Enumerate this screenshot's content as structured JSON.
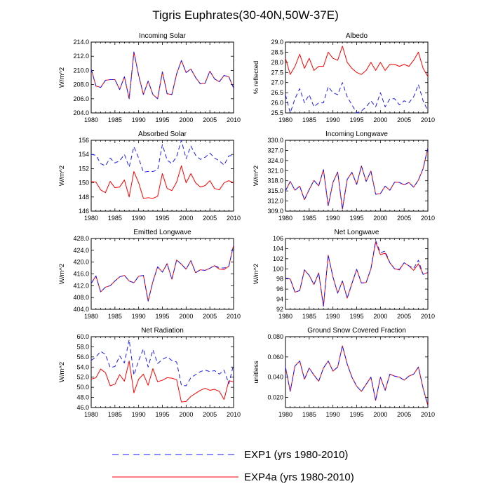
{
  "figure_title": "Tigris Euphrates(30-40N,50W-37E)",
  "legend": [
    {
      "label": "EXP1 (yrs 1980-2010)",
      "color": "#1a1aff",
      "style": "dashed"
    },
    {
      "label": "EXP4a (yrs 1980-2010)",
      "color": "#ff0000",
      "style": "solid"
    }
  ],
  "chart_data": [
    {
      "type": "line",
      "title": "Incoming Solar",
      "ylabel": "W/m^2",
      "xlim": [
        1980,
        2010
      ],
      "ylim": [
        204,
        214
      ],
      "xticks": [
        1980,
        1985,
        1990,
        1995,
        2000,
        2005,
        2010
      ],
      "yticks": [
        204,
        206,
        208,
        210,
        212,
        214
      ],
      "ytick_labels": [
        "204.0",
        "206.0",
        "208.0",
        "210.0",
        "212.0",
        "214.0"
      ],
      "x": [
        1980,
        1981,
        1982,
        1983,
        1984,
        1985,
        1986,
        1987,
        1988,
        1989,
        1990,
        1991,
        1992,
        1993,
        1994,
        1995,
        1996,
        1997,
        1998,
        1999,
        2000,
        2001,
        2002,
        2003,
        2004,
        2005,
        2006,
        2007,
        2008,
        2009,
        2010
      ],
      "series": [
        {
          "name": "EXP1",
          "values": [
            210.2,
            207.8,
            207.6,
            208.6,
            208.7,
            208.7,
            207.3,
            209.1,
            206.0,
            212.6,
            209.3,
            206.6,
            208.5,
            206.6,
            206.0,
            209.8,
            206.7,
            206.6,
            209.5,
            211.4,
            209.7,
            210.2,
            209.0,
            208.1,
            208.2,
            209.9,
            208.8,
            208.4,
            209.3,
            209.1,
            207.5
          ]
        },
        {
          "name": "EXP4a",
          "values": [
            210.2,
            207.8,
            207.6,
            208.6,
            208.7,
            208.7,
            207.3,
            209.1,
            206.0,
            212.6,
            209.3,
            206.6,
            208.5,
            206.6,
            206.0,
            209.8,
            206.7,
            206.6,
            209.5,
            211.4,
            209.7,
            210.2,
            209.0,
            208.1,
            208.2,
            209.9,
            208.8,
            208.4,
            209.3,
            209.1,
            207.5
          ]
        }
      ]
    },
    {
      "type": "line",
      "title": "Albedo",
      "ylabel": "% reflected",
      "xlim": [
        1980,
        2010
      ],
      "ylim": [
        25.5,
        29.0
      ],
      "xticks": [
        1980,
        1985,
        1990,
        1995,
        2000,
        2005,
        2010
      ],
      "yticks": [
        25.5,
        26.0,
        26.5,
        27.0,
        27.5,
        28.0,
        28.5,
        29.0
      ],
      "ytick_labels": [
        "25.5",
        "26.0",
        "26.5",
        "27.0",
        "27.5",
        "28.0",
        "28.5",
        "29.0"
      ],
      "x": [
        1980,
        1981,
        1982,
        1983,
        1984,
        1985,
        1986,
        1987,
        1988,
        1989,
        1990,
        1991,
        1992,
        1993,
        1994,
        1995,
        1996,
        1997,
        1998,
        1999,
        2000,
        2001,
        2002,
        2003,
        2004,
        2005,
        2006,
        2007,
        2008,
        2009,
        2010
      ],
      "series": [
        {
          "name": "EXP1",
          "values": [
            26.4,
            25.5,
            26.2,
            26.7,
            26.0,
            26.4,
            25.8,
            26.0,
            26.0,
            26.8,
            26.5,
            26.4,
            27.0,
            26.3,
            25.9,
            25.5,
            25.6,
            25.8,
            26.1,
            25.8,
            26.5,
            25.8,
            26.2,
            26.2,
            25.9,
            26.1,
            26.0,
            26.3,
            26.9,
            26.1,
            25.6
          ]
        },
        {
          "name": "EXP4a",
          "values": [
            28.2,
            27.4,
            27.8,
            28.4,
            27.7,
            28.2,
            27.6,
            27.8,
            27.8,
            28.5,
            28.2,
            28.1,
            28.8,
            28.0,
            27.7,
            27.5,
            27.4,
            27.6,
            28.0,
            27.6,
            28.0,
            27.6,
            27.9,
            27.9,
            27.8,
            27.9,
            27.8,
            28.1,
            28.5,
            27.7,
            27.3
          ]
        }
      ]
    },
    {
      "type": "line",
      "title": "Absorbed Solar",
      "ylabel": "W/m^2",
      "xlim": [
        1980,
        2010
      ],
      "ylim": [
        146,
        156
      ],
      "xticks": [
        1980,
        1985,
        1990,
        1995,
        2000,
        2005,
        2010
      ],
      "yticks": [
        146,
        148,
        150,
        152,
        154,
        156
      ],
      "ytick_labels": [
        "146",
        "148",
        "150",
        "152",
        "154",
        "156"
      ],
      "x": [
        1980,
        1981,
        1982,
        1983,
        1984,
        1985,
        1986,
        1987,
        1988,
        1989,
        1990,
        1991,
        1992,
        1993,
        1994,
        1995,
        1996,
        1997,
        1998,
        1999,
        2000,
        2001,
        2002,
        2003,
        2004,
        2005,
        2006,
        2007,
        2008,
        2009,
        2010
      ],
      "series": [
        {
          "name": "EXP1",
          "values": [
            154.0,
            153.9,
            152.7,
            152.4,
            153.5,
            152.8,
            153.1,
            154.0,
            152.2,
            155.1,
            153.5,
            151.5,
            151.6,
            151.6,
            151.8,
            155.4,
            153.2,
            152.7,
            153.7,
            156.0,
            153.4,
            155.2,
            153.9,
            153.3,
            153.6,
            154.2,
            153.5,
            153.1,
            152.5,
            153.8,
            153.9
          ]
        },
        {
          "name": "EXP4a",
          "values": [
            150.2,
            150.1,
            149.0,
            148.6,
            150.2,
            149.3,
            149.4,
            150.4,
            148.0,
            151.6,
            150.0,
            147.8,
            147.9,
            147.8,
            148.1,
            151.3,
            149.2,
            148.9,
            150.1,
            152.4,
            150.0,
            151.3,
            150.0,
            149.4,
            149.6,
            150.3,
            149.2,
            149.0,
            150.0,
            150.3,
            150.0
          ]
        }
      ]
    },
    {
      "type": "line",
      "title": "Incoming Longwave",
      "ylabel": "W/m^2",
      "xlim": [
        1980,
        2010
      ],
      "ylim": [
        309,
        330
      ],
      "xticks": [
        1980,
        1985,
        1990,
        1995,
        2000,
        2005,
        2010
      ],
      "yticks": [
        309,
        312,
        315,
        318,
        321,
        324,
        327,
        330
      ],
      "ytick_labels": [
        "309.0",
        "312.0",
        "315.0",
        "318.0",
        "321.0",
        "324.0",
        "327.0",
        "330.0"
      ],
      "x": [
        1980,
        1981,
        1982,
        1983,
        1984,
        1985,
        1986,
        1987,
        1988,
        1989,
        1990,
        1991,
        1992,
        1993,
        1994,
        1995,
        1996,
        1997,
        1998,
        1999,
        2000,
        2001,
        2002,
        2003,
        2004,
        2005,
        2006,
        2007,
        2008,
        2009,
        2010
      ],
      "series": [
        {
          "name": "EXP1",
          "values": [
            315.0,
            317.8,
            315.2,
            316.4,
            312.4,
            315.4,
            318.1,
            316.5,
            321.3,
            310.6,
            317.5,
            320.6,
            309.6,
            318.4,
            320.5,
            316.9,
            322.4,
            317.8,
            320.9,
            314.0,
            314.2,
            316.4,
            315.2,
            317.6,
            317.5,
            316.8,
            317.5,
            316.1,
            318.2,
            321.6,
            327.8
          ]
        },
        {
          "name": "EXP4a",
          "values": [
            315.0,
            317.8,
            315.2,
            316.4,
            312.4,
            315.4,
            318.1,
            316.5,
            321.3,
            310.6,
            317.5,
            320.6,
            309.6,
            318.4,
            320.5,
            316.9,
            322.4,
            317.8,
            320.9,
            314.0,
            314.2,
            316.4,
            315.2,
            317.6,
            317.5,
            316.8,
            317.5,
            316.1,
            318.2,
            321.6,
            327.8
          ]
        }
      ]
    },
    {
      "type": "line",
      "title": "Emitted Longwave",
      "ylabel": "W/m^2",
      "xlim": [
        1980,
        2010
      ],
      "ylim": [
        404,
        428
      ],
      "xticks": [
        1980,
        1985,
        1990,
        1995,
        2000,
        2005,
        2010
      ],
      "yticks": [
        404,
        408,
        412,
        416,
        420,
        424,
        428
      ],
      "ytick_labels": [
        "404.0",
        "408.0",
        "412.0",
        "416.0",
        "420.0",
        "424.0",
        "428.0"
      ],
      "x": [
        1980,
        1981,
        1982,
        1983,
        1984,
        1985,
        1986,
        1987,
        1988,
        1989,
        1990,
        1991,
        1992,
        1993,
        1994,
        1995,
        1996,
        1997,
        1998,
        1999,
        2000,
        2001,
        2002,
        2003,
        2004,
        2005,
        2006,
        2007,
        2008,
        2009,
        2010
      ],
      "series": [
        {
          "name": "EXP1",
          "values": [
            412.8,
            415.3,
            409.9,
            411.5,
            412.0,
            413.6,
            415.0,
            415.5,
            413.6,
            413.0,
            415.2,
            415.5,
            406.8,
            413.4,
            418.4,
            416.6,
            419.5,
            414.2,
            420.7,
            419.3,
            417.6,
            420.5,
            416.4,
            417.4,
            417.2,
            417.9,
            418.8,
            418.1,
            418.0,
            418.6,
            425.8
          ]
        },
        {
          "name": "EXP4a",
          "values": [
            412.8,
            415.3,
            409.9,
            411.5,
            412.0,
            413.6,
            415.0,
            415.5,
            413.6,
            413.0,
            415.2,
            415.5,
            406.8,
            413.4,
            418.4,
            416.6,
            419.5,
            414.2,
            420.7,
            419.3,
            417.6,
            420.5,
            416.4,
            417.4,
            417.2,
            417.9,
            418.8,
            417.6,
            417.5,
            418.6,
            425.8
          ]
        }
      ]
    },
    {
      "type": "line",
      "title": "Net Longwave",
      "ylabel": "W/m^2",
      "xlim": [
        1980,
        2010
      ],
      "ylim": [
        92,
        106
      ],
      "xticks": [
        1980,
        1985,
        1990,
        1995,
        2000,
        2005,
        2010
      ],
      "yticks": [
        92,
        94,
        96,
        98,
        100,
        102,
        104,
        106
      ],
      "ytick_labels": [
        "92",
        "94",
        "96",
        "98",
        "100",
        "102",
        "104",
        "106"
      ],
      "x": [
        1980,
        1981,
        1982,
        1983,
        1984,
        1985,
        1986,
        1987,
        1988,
        1989,
        1990,
        1991,
        1992,
        1993,
        1994,
        1995,
        1996,
        1997,
        1998,
        1999,
        2000,
        2001,
        2002,
        2003,
        2004,
        2005,
        2006,
        2007,
        2008,
        2009,
        2010
      ],
      "series": [
        {
          "name": "EXP1",
          "values": [
            98.2,
            98.0,
            95.4,
            95.7,
            99.8,
            98.7,
            96.9,
            99.2,
            92.6,
            102.7,
            98.4,
            95.2,
            97.6,
            94.2,
            97.1,
            99.9,
            97.2,
            97.3,
            100.0,
            105.6,
            103.2,
            103.5,
            101.2,
            100.0,
            99.9,
            101.2,
            100.6,
            100.1,
            101.7,
            98.9,
            99.3
          ]
        },
        {
          "name": "EXP4a",
          "values": [
            98.2,
            98.0,
            95.4,
            95.7,
            99.8,
            98.7,
            96.9,
            99.2,
            92.6,
            102.7,
            98.4,
            95.2,
            97.6,
            94.2,
            97.1,
            99.9,
            97.2,
            97.3,
            100.0,
            105.3,
            102.8,
            103.1,
            101.2,
            100.0,
            99.8,
            101.2,
            100.6,
            99.7,
            101.0,
            98.9,
            99.3
          ]
        }
      ]
    },
    {
      "type": "line",
      "title": "Net Radiation",
      "ylabel": "W/m^2",
      "xlim": [
        1980,
        2010
      ],
      "ylim": [
        46,
        60
      ],
      "xticks": [
        1980,
        1985,
        1990,
        1995,
        2000,
        2005,
        2010
      ],
      "yticks": [
        46,
        48,
        50,
        52,
        54,
        56,
        58,
        60
      ],
      "ytick_labels": [
        "46.0",
        "48.0",
        "50.0",
        "52.0",
        "54.0",
        "56.0",
        "58.0",
        "60.0"
      ],
      "x": [
        1980,
        1981,
        1982,
        1983,
        1984,
        1985,
        1986,
        1987,
        1988,
        1989,
        1990,
        1991,
        1992,
        1993,
        1994,
        1995,
        1996,
        1997,
        1998,
        1999,
        2000,
        2001,
        2002,
        2003,
        2004,
        2005,
        2006,
        2007,
        2008,
        2009,
        2010
      ],
      "series": [
        {
          "name": "EXP1",
          "values": [
            55.3,
            56.0,
            57.1,
            56.5,
            53.9,
            54.1,
            56.2,
            54.8,
            59.4,
            52.4,
            55.3,
            57.6,
            54.0,
            57.4,
            54.7,
            55.5,
            56.0,
            55.3,
            55.0,
            50.4,
            50.3,
            51.9,
            52.5,
            53.1,
            53.4,
            53.1,
            53.3,
            52.6,
            53.4,
            50.7,
            54.5
          ]
        },
        {
          "name": "EXP4a",
          "values": [
            51.6,
            51.9,
            53.6,
            52.9,
            50.3,
            50.6,
            52.5,
            51.2,
            55.2,
            48.9,
            51.6,
            52.6,
            50.4,
            53.7,
            51.1,
            51.4,
            51.9,
            51.8,
            51.5,
            47.1,
            47.2,
            48.2,
            48.8,
            49.4,
            49.8,
            49.4,
            49.6,
            49.2,
            47.6,
            51.3,
            51.1
          ]
        }
      ]
    },
    {
      "type": "line",
      "title": "Ground Snow Covered Fraction",
      "ylabel": "unitless",
      "xlim": [
        1980,
        2010
      ],
      "ylim": [
        0.01,
        0.08
      ],
      "xticks": [
        1980,
        1985,
        1990,
        1995,
        2000,
        2005,
        2010
      ],
      "yticks": [
        0.02,
        0.04,
        0.06,
        0.08
      ],
      "ytick_labels": [
        "0.020",
        "0.040",
        "0.060",
        "0.080"
      ],
      "x": [
        1980,
        1981,
        1982,
        1983,
        1984,
        1985,
        1986,
        1987,
        1988,
        1989,
        1990,
        1991,
        1992,
        1993,
        1994,
        1995,
        1996,
        1997,
        1998,
        1999,
        2000,
        2001,
        2002,
        2003,
        2004,
        2005,
        2006,
        2007,
        2008,
        2009,
        2010
      ],
      "series": [
        {
          "name": "EXP1",
          "values": [
            0.05,
            0.026,
            0.051,
            0.056,
            0.038,
            0.049,
            0.042,
            0.036,
            0.049,
            0.056,
            0.046,
            0.05,
            0.071,
            0.053,
            0.04,
            0.031,
            0.026,
            0.033,
            0.04,
            0.017,
            0.04,
            0.027,
            0.043,
            0.041,
            0.04,
            0.037,
            0.041,
            0.043,
            0.05,
            0.029,
            0.012
          ]
        },
        {
          "name": "EXP4a",
          "values": [
            0.05,
            0.026,
            0.051,
            0.056,
            0.038,
            0.049,
            0.042,
            0.036,
            0.049,
            0.056,
            0.046,
            0.05,
            0.071,
            0.053,
            0.04,
            0.031,
            0.026,
            0.033,
            0.04,
            0.017,
            0.04,
            0.027,
            0.043,
            0.041,
            0.04,
            0.037,
            0.041,
            0.043,
            0.05,
            0.029,
            0.012
          ]
        }
      ]
    }
  ]
}
